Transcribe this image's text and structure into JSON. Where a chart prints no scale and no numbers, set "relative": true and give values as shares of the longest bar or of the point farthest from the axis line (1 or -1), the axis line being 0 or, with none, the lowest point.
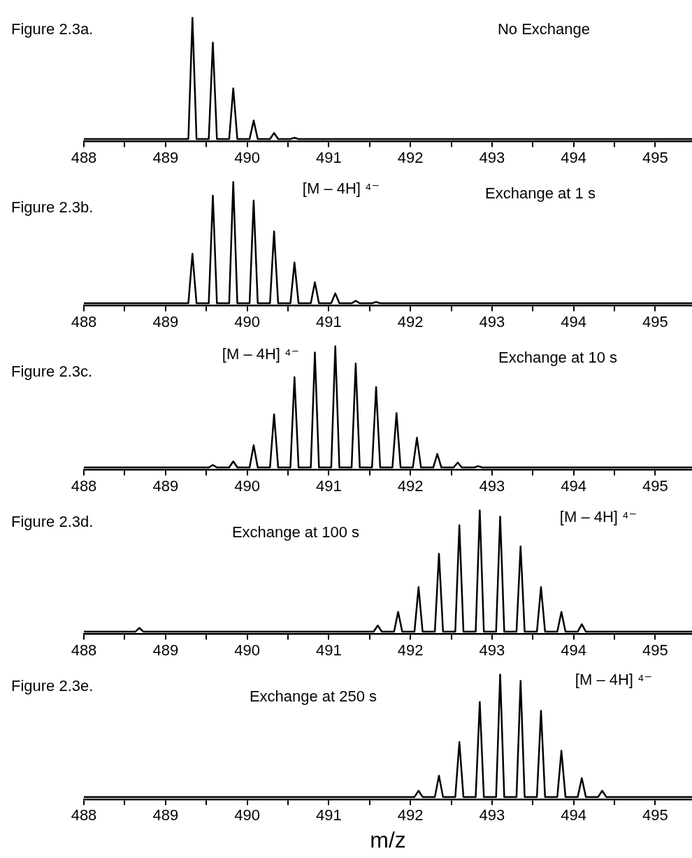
{
  "chart_data": [
    {
      "type": "line",
      "title": "Figure 2.3a.",
      "subtitle": "No Exchange",
      "relative": true,
      "marker": "none",
      "xlim": [
        488,
        495.45
      ],
      "xticks": [
        488,
        {
          "value": 488.5,
          "label": null
        },
        489,
        {
          "value": 489.5,
          "label": null
        },
        490,
        {
          "value": 490.5,
          "label": null
        },
        491,
        {
          "value": 491.5,
          "label": null
        },
        492,
        {
          "value": 492.5,
          "label": null
        },
        493,
        {
          "value": 493.5,
          "label": null
        },
        494,
        {
          "value": 494.5,
          "label": null
        },
        495
      ],
      "series": [
        {
          "color": "#000000",
          "x": [
            488,
            489.28,
            489.33,
            489.38,
            489.53,
            489.58,
            489.63,
            489.78,
            489.83,
            489.88,
            490.03,
            490.08,
            490.13,
            490.28,
            490.33,
            490.38,
            490.53,
            490.58,
            490.63,
            495.45
          ],
          "values": [
            0.02,
            0.02,
            1,
            0.02,
            0.02,
            0.8,
            0.02,
            0.02,
            0.43,
            0.02,
            0.02,
            0.17,
            0.02,
            0.02,
            0.07,
            0.02,
            0.02,
            0.03,
            0.02,
            0.02
          ]
        }
      ]
    },
    {
      "type": "line",
      "title": "Figure 2.3b.",
      "subtitle": "Exchange at 1 s",
      "annotations": [
        "[M – 4H] ⁴⁻"
      ],
      "relative": true,
      "marker": "none",
      "xlim": [
        488,
        495.45
      ],
      "xticks": [
        488,
        {
          "value": 488.5,
          "label": null
        },
        489,
        {
          "value": 489.5,
          "label": null
        },
        490,
        {
          "value": 490.5,
          "label": null
        },
        491,
        {
          "value": 491.5,
          "label": null
        },
        492,
        {
          "value": 492.5,
          "label": null
        },
        493,
        {
          "value": 493.5,
          "label": null
        },
        494,
        {
          "value": 494.5,
          "label": null
        },
        495
      ],
      "series": [
        {
          "color": "#000000",
          "x": [
            488,
            489.28,
            489.33,
            489.38,
            489.53,
            489.58,
            489.63,
            489.78,
            489.83,
            489.88,
            490.03,
            490.08,
            490.13,
            490.28,
            490.33,
            490.38,
            490.53,
            490.58,
            490.63,
            490.78,
            490.83,
            490.88,
            491.03,
            491.08,
            491.13,
            491.28,
            491.33,
            491.38,
            491.53,
            491.58,
            491.63,
            495.45
          ],
          "values": [
            0.02,
            0.02,
            0.42,
            0.02,
            0.02,
            0.89,
            0.02,
            0.02,
            1,
            0.02,
            0.02,
            0.85,
            0.02,
            0.02,
            0.6,
            0.02,
            0.02,
            0.35,
            0.02,
            0.02,
            0.19,
            0.02,
            0.02,
            0.1,
            0.02,
            0.02,
            0.04,
            0.02,
            0.02,
            0.03,
            0.02,
            0.02
          ]
        }
      ]
    },
    {
      "type": "line",
      "title": "Figure 2.3c.",
      "subtitle": "Exchange at 10 s",
      "annotations": [
        "[M – 4H] ⁴⁻"
      ],
      "relative": true,
      "marker": "none",
      "xlim": [
        488,
        495.45
      ],
      "xticks": [
        488,
        {
          "value": 488.5,
          "label": null
        },
        489,
        {
          "value": 489.5,
          "label": null
        },
        490,
        {
          "value": 490.5,
          "label": null
        },
        491,
        {
          "value": 491.5,
          "label": null
        },
        492,
        {
          "value": 492.5,
          "label": null
        },
        493,
        {
          "value": 493.5,
          "label": null
        },
        494,
        {
          "value": 494.5,
          "label": null
        },
        495
      ],
      "series": [
        {
          "color": "#000000",
          "x": [
            488,
            489.53,
            489.58,
            489.63,
            489.78,
            489.83,
            489.88,
            490.03,
            490.08,
            490.13,
            490.28,
            490.33,
            490.38,
            490.53,
            490.58,
            490.63,
            490.78,
            490.83,
            490.88,
            491.03,
            491.08,
            491.13,
            491.28,
            491.33,
            491.38,
            491.53,
            491.58,
            491.63,
            491.78,
            491.83,
            491.88,
            492.03,
            492.08,
            492.13,
            492.28,
            492.33,
            492.38,
            492.53,
            492.58,
            492.63,
            492.78,
            492.83,
            492.88,
            495.45
          ],
          "values": [
            0.02,
            0.02,
            0.04,
            0.02,
            0.02,
            0.07,
            0.02,
            0.02,
            0.2,
            0.02,
            0.02,
            0.45,
            0.02,
            0.02,
            0.75,
            0.02,
            0.02,
            0.95,
            0.02,
            0.02,
            1,
            0.02,
            0.02,
            0.86,
            0.02,
            0.02,
            0.67,
            0.02,
            0.02,
            0.46,
            0.02,
            0.02,
            0.26,
            0.02,
            0.02,
            0.13,
            0.02,
            0.02,
            0.06,
            0.02,
            0.02,
            0.03,
            0.02,
            0.02
          ]
        }
      ]
    },
    {
      "type": "line",
      "title": "Figure 2.3d.",
      "subtitle": "Exchange at 100 s",
      "annotations": [
        "[M – 4H] ⁴⁻"
      ],
      "relative": true,
      "marker": "none",
      "xlim": [
        488,
        495.45
      ],
      "xticks": [
        488,
        {
          "value": 488.5,
          "label": null
        },
        489,
        {
          "value": 489.5,
          "label": null
        },
        490,
        {
          "value": 490.5,
          "label": null
        },
        491,
        {
          "value": 491.5,
          "label": null
        },
        492,
        {
          "value": 492.5,
          "label": null
        },
        493,
        {
          "value": 493.5,
          "label": null
        },
        494,
        {
          "value": 494.5,
          "label": null
        },
        495
      ],
      "series": [
        {
          "color": "#000000",
          "x": [
            488,
            488.63,
            488.68,
            488.73,
            491.55,
            491.6,
            491.65,
            491.8,
            491.85,
            491.9,
            492.05,
            492.1,
            492.15,
            492.3,
            492.35,
            492.4,
            492.55,
            492.6,
            492.65,
            492.8,
            492.85,
            492.9,
            493.05,
            493.1,
            493.15,
            493.3,
            493.35,
            493.4,
            493.55,
            493.6,
            493.65,
            493.8,
            493.85,
            493.9,
            494.05,
            494.1,
            494.15,
            495.45
          ],
          "values": [
            0.02,
            0.02,
            0.05,
            0.02,
            0.02,
            0.07,
            0.02,
            0.02,
            0.18,
            0.02,
            0.02,
            0.38,
            0.02,
            0.02,
            0.65,
            0.02,
            0.02,
            0.88,
            0.02,
            0.02,
            1,
            0.02,
            0.02,
            0.95,
            0.02,
            0.02,
            0.71,
            0.02,
            0.02,
            0.38,
            0.02,
            0.02,
            0.18,
            0.02,
            0.02,
            0.08,
            0.02,
            0.02
          ]
        }
      ]
    },
    {
      "type": "line",
      "title": "Figure 2.3e.",
      "subtitle": "Exchange at 250 s",
      "xlabel": "m/z",
      "annotations": [
        "[M – 4H] ⁴⁻"
      ],
      "relative": true,
      "marker": "none",
      "xlim": [
        488,
        495.45
      ],
      "xticks": [
        488,
        {
          "value": 488.5,
          "label": null
        },
        489,
        {
          "value": 489.5,
          "label": null
        },
        490,
        {
          "value": 490.5,
          "label": null
        },
        491,
        {
          "value": 491.5,
          "label": null
        },
        492,
        {
          "value": 492.5,
          "label": null
        },
        493,
        {
          "value": 493.5,
          "label": null
        },
        494,
        {
          "value": 494.5,
          "label": null
        },
        495
      ],
      "series": [
        {
          "color": "#000000",
          "x": [
            488,
            492.05,
            492.1,
            492.15,
            492.3,
            492.35,
            492.4,
            492.55,
            492.6,
            492.65,
            492.8,
            492.85,
            492.9,
            493.05,
            493.1,
            493.15,
            493.3,
            493.35,
            493.4,
            493.55,
            493.6,
            493.65,
            493.8,
            493.85,
            493.9,
            494.05,
            494.1,
            494.15,
            494.3,
            494.35,
            494.4,
            495.45
          ],
          "values": [
            0.02,
            0.02,
            0.07,
            0.02,
            0.02,
            0.19,
            0.02,
            0.02,
            0.46,
            0.02,
            0.02,
            0.78,
            0.02,
            0.02,
            1,
            0.02,
            0.02,
            0.95,
            0.02,
            0.02,
            0.71,
            0.02,
            0.02,
            0.39,
            0.02,
            0.02,
            0.17,
            0.02,
            0.02,
            0.07,
            0.02,
            0.02
          ]
        }
      ]
    }
  ]
}
